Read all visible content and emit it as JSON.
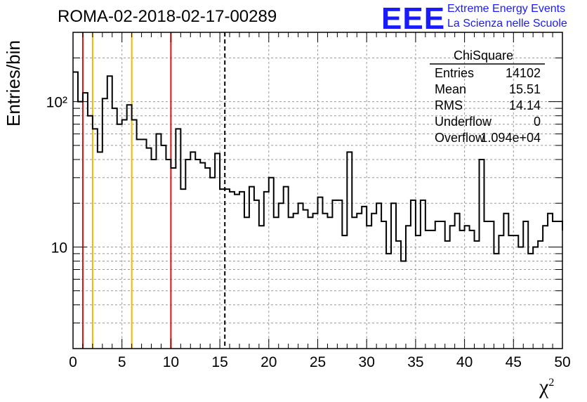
{
  "title": "ROMA-02-2018-02-17-00289",
  "logo": {
    "mark": "EEE",
    "line1": "Extreme Energy Events",
    "line2": "La Scienza nelle Scuole",
    "color": "#1a1aff"
  },
  "stats": {
    "title": "ChiSquare",
    "rows": [
      {
        "label": "Entries",
        "value": "14102"
      },
      {
        "label": "Mean",
        "value": "15.51"
      },
      {
        "label": "RMS",
        "value": "14.14"
      },
      {
        "label": "Underflow",
        "value": "0"
      },
      {
        "label": "Overflow",
        "value": "1.094e+04"
      }
    ]
  },
  "chart_data": {
    "type": "histogram",
    "xlabel": "χ²",
    "ylabel": "Entries/bin",
    "xlim": [
      0,
      50
    ],
    "ylim": [
      2,
      300
    ],
    "log_y": true,
    "grid": true,
    "bin_width": 0.5,
    "x_ticks": [
      "0",
      "5",
      "10",
      "15",
      "20",
      "25",
      "30",
      "35",
      "40",
      "45",
      "50"
    ],
    "y_tick_labels": [
      {
        "value": 100,
        "text": "10²"
      },
      {
        "value": 10,
        "text": "10"
      }
    ],
    "values": [
      160,
      100,
      115,
      80,
      65,
      45,
      105,
      150,
      90,
      70,
      75,
      95,
      75,
      55,
      55,
      48,
      40,
      60,
      50,
      40,
      35,
      65,
      25,
      40,
      45,
      40,
      38,
      35,
      30,
      44,
      25,
      25,
      24,
      23,
      24,
      16,
      26,
      21,
      14,
      24,
      30,
      16,
      20,
      26,
      16,
      17,
      20,
      18,
      16,
      17,
      22,
      17,
      16,
      21,
      21,
      12,
      45,
      16,
      17,
      19,
      14,
      17,
      20,
      15,
      9,
      20,
      11,
      8,
      14,
      21,
      12,
      21,
      13,
      13,
      15,
      15,
      11,
      14,
      17,
      13,
      14,
      13,
      11,
      40,
      15,
      15,
      9,
      12,
      17,
      12,
      12,
      10,
      15,
      9,
      10,
      11,
      14,
      17,
      15,
      15,
      13
    ],
    "vlines": [
      {
        "x": 1,
        "color": "#dd1111",
        "style": "solid"
      },
      {
        "x": 2,
        "color": "#f2b800",
        "style": "solid"
      },
      {
        "x": 6,
        "color": "#f2b800",
        "style": "solid"
      },
      {
        "x": 10,
        "color": "#dd1111",
        "style": "solid"
      },
      {
        "x": 15.51,
        "color": "#000000",
        "style": "dashed"
      }
    ]
  }
}
